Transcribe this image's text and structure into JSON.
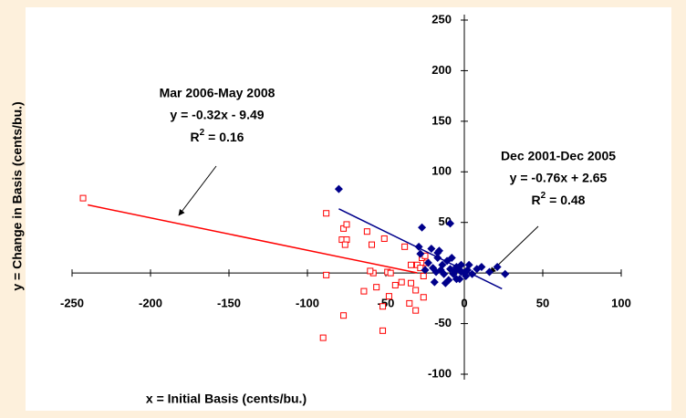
{
  "chart_data": {
    "type": "scatter",
    "x_label": "x = Initial Basis (cents/bu.)",
    "y_label": "y = Change in Basis (cents/bu.)",
    "xlim": [
      -250,
      100
    ],
    "ylim": [
      -100,
      250
    ],
    "xticks": [
      -250,
      -200,
      -150,
      -100,
      -50,
      0,
      50,
      100
    ],
    "yticks": [
      -100,
      -50,
      50,
      100,
      150,
      200,
      250
    ],
    "series": [
      {
        "name": "Mar 2006-May 2008",
        "color": "#ff0000",
        "marker": "square-open",
        "x": [
          -243,
          -88,
          -77,
          -75,
          -78,
          -75,
          -76,
          -88,
          -77,
          -90,
          -62,
          -59,
          -58,
          -60,
          -64,
          -56,
          -52,
          -52,
          -49,
          -47,
          -48,
          -51,
          -44,
          -40,
          -38,
          -34,
          -34,
          -31,
          -30,
          -28,
          -27,
          -26,
          -25,
          -24,
          -26,
          -35,
          -31
        ],
        "values": [
          74,
          59,
          44,
          48,
          33,
          33,
          28,
          -2,
          -42,
          -64,
          41,
          28,
          0,
          2,
          -18,
          -14,
          -33,
          -57,
          1,
          0,
          -23,
          34,
          -12,
          -9,
          26,
          8,
          -10,
          -17,
          8,
          5,
          15,
          -3,
          17,
          10,
          -24,
          -30,
          -37
        ],
        "fit": {
          "slope": -0.32,
          "intercept": -9.49,
          "xrange": [
            -240,
            -30
          ]
        },
        "annotation": {
          "lines": [
            "Mar 2006-May 2008",
            "y = -0.32x - 9.49"
          ],
          "r2": {
            "base": "R",
            "sup": "2",
            "rest": " = 0.16"
          }
        }
      },
      {
        "name": "Dec 2001-Dec 2005",
        "color": "#00008b",
        "marker": "diamond",
        "x": [
          -80,
          -27,
          -9,
          -28,
          -17,
          -16,
          -20,
          16,
          26,
          21,
          11,
          8,
          3,
          -7,
          -5,
          -12,
          -18,
          -23,
          -25,
          -14,
          -11,
          -8,
          -2,
          1,
          -3,
          2,
          5,
          -17,
          -13,
          -9,
          -5,
          -2,
          -10,
          -19,
          -21,
          -29,
          -6,
          -4,
          0,
          -15
        ],
        "values": [
          83,
          45,
          49,
          19,
          20,
          22,
          5,
          1,
          -1,
          6,
          6,
          4,
          8,
          -1,
          -6,
          -10,
          1,
          10,
          3,
          8,
          12,
          15,
          1,
          -3,
          -6,
          3,
          -1,
          15,
          -1,
          4,
          6,
          8,
          -7,
          -9,
          24,
          26,
          2,
          4,
          0,
          3
        ],
        "fit": {
          "slope": -0.76,
          "intercept": 2.65,
          "xrange": [
            -80,
            24
          ]
        },
        "annotation": {
          "lines": [
            "Dec 2001-Dec 2005",
            "y = -0.76x + 2.65"
          ],
          "r2": {
            "base": "R",
            "sup": "2",
            "rest": " = 0.48"
          }
        }
      }
    ]
  }
}
